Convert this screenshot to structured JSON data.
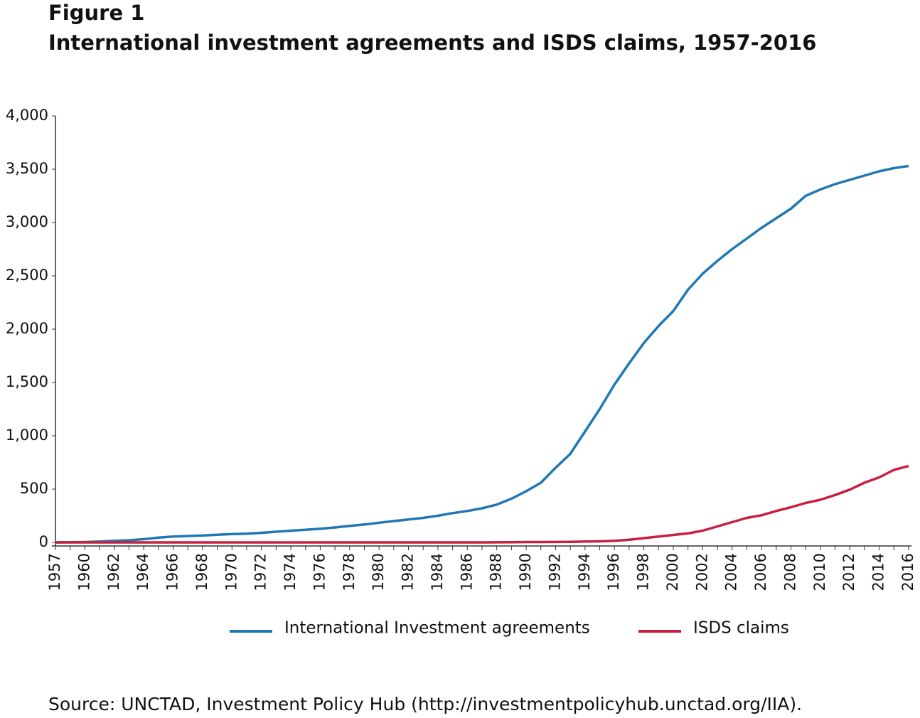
{
  "chart_data": {
    "type": "line",
    "title": "Figure 1",
    "subtitle": "International investment agreements and ISDS claims, 1957-2016",
    "source": "Source: UNCTAD, Investment Policy Hub (http://investmentpolicyhub.unctad.org/IIA).",
    "categories": [
      "1957",
      null,
      "1960",
      null,
      "1962",
      null,
      "1964",
      null,
      "1966",
      null,
      "1968",
      null,
      "1970",
      null,
      "1972",
      null,
      "1974",
      null,
      "1976",
      null,
      "1978",
      null,
      "1980",
      null,
      "1982",
      null,
      "1984",
      null,
      "1986",
      null,
      "1988",
      null,
      "1990",
      null,
      "1992",
      null,
      "1994",
      null,
      "1996",
      null,
      "1998",
      null,
      "2000",
      null,
      "2002",
      null,
      "2004",
      null,
      "2006",
      null,
      "2008",
      null,
      "2010",
      null,
      "2012",
      null,
      "2014",
      null,
      "2016"
    ],
    "series": [
      {
        "name": "International Investment agreements",
        "color": "#1f78b4",
        "values": [
          0,
          2,
          3,
          8,
          15,
          20,
          30,
          45,
          55,
          60,
          65,
          72,
          78,
          82,
          90,
          100,
          110,
          118,
          128,
          140,
          155,
          168,
          185,
          200,
          215,
          230,
          250,
          275,
          295,
          320,
          355,
          410,
          480,
          560,
          700,
          830,
          1040,
          1250,
          1480,
          1680,
          1870,
          2030,
          2170,
          2370,
          2520,
          2640,
          2750,
          2850,
          2950,
          3040,
          3130,
          3250,
          3310,
          3360,
          3400,
          3440,
          3480,
          3510,
          3530
        ]
      },
      {
        "name": "ISDS claims",
        "color": "#c8203f",
        "values": [
          0,
          0,
          0,
          0,
          0,
          0,
          0,
          0,
          0,
          0,
          0,
          0,
          0,
          0,
          0,
          0,
          0,
          0,
          0,
          0,
          0,
          0,
          0,
          0,
          0,
          0,
          0,
          0,
          0,
          0,
          1,
          2,
          3,
          3,
          4,
          5,
          8,
          10,
          15,
          25,
          40,
          55,
          70,
          85,
          110,
          150,
          190,
          230,
          255,
          295,
          330,
          370,
          400,
          445,
          495,
          560,
          610,
          680,
          717
        ]
      }
    ],
    "ylim": [
      0,
      4000
    ],
    "yticks": [
      0,
      500,
      {
        "value": 1000,
        "label": "1,000"
      },
      {
        "value": 1500,
        "label": "1,500"
      },
      {
        "value": 2000,
        "label": "2,000"
      },
      {
        "value": 2500,
        "label": "2,500"
      },
      {
        "value": 3000,
        "label": "3,000"
      },
      {
        "value": 3500,
        "label": "3,500"
      },
      {
        "value": 4000,
        "label": "4,000"
      }
    ],
    "grid": false
  }
}
